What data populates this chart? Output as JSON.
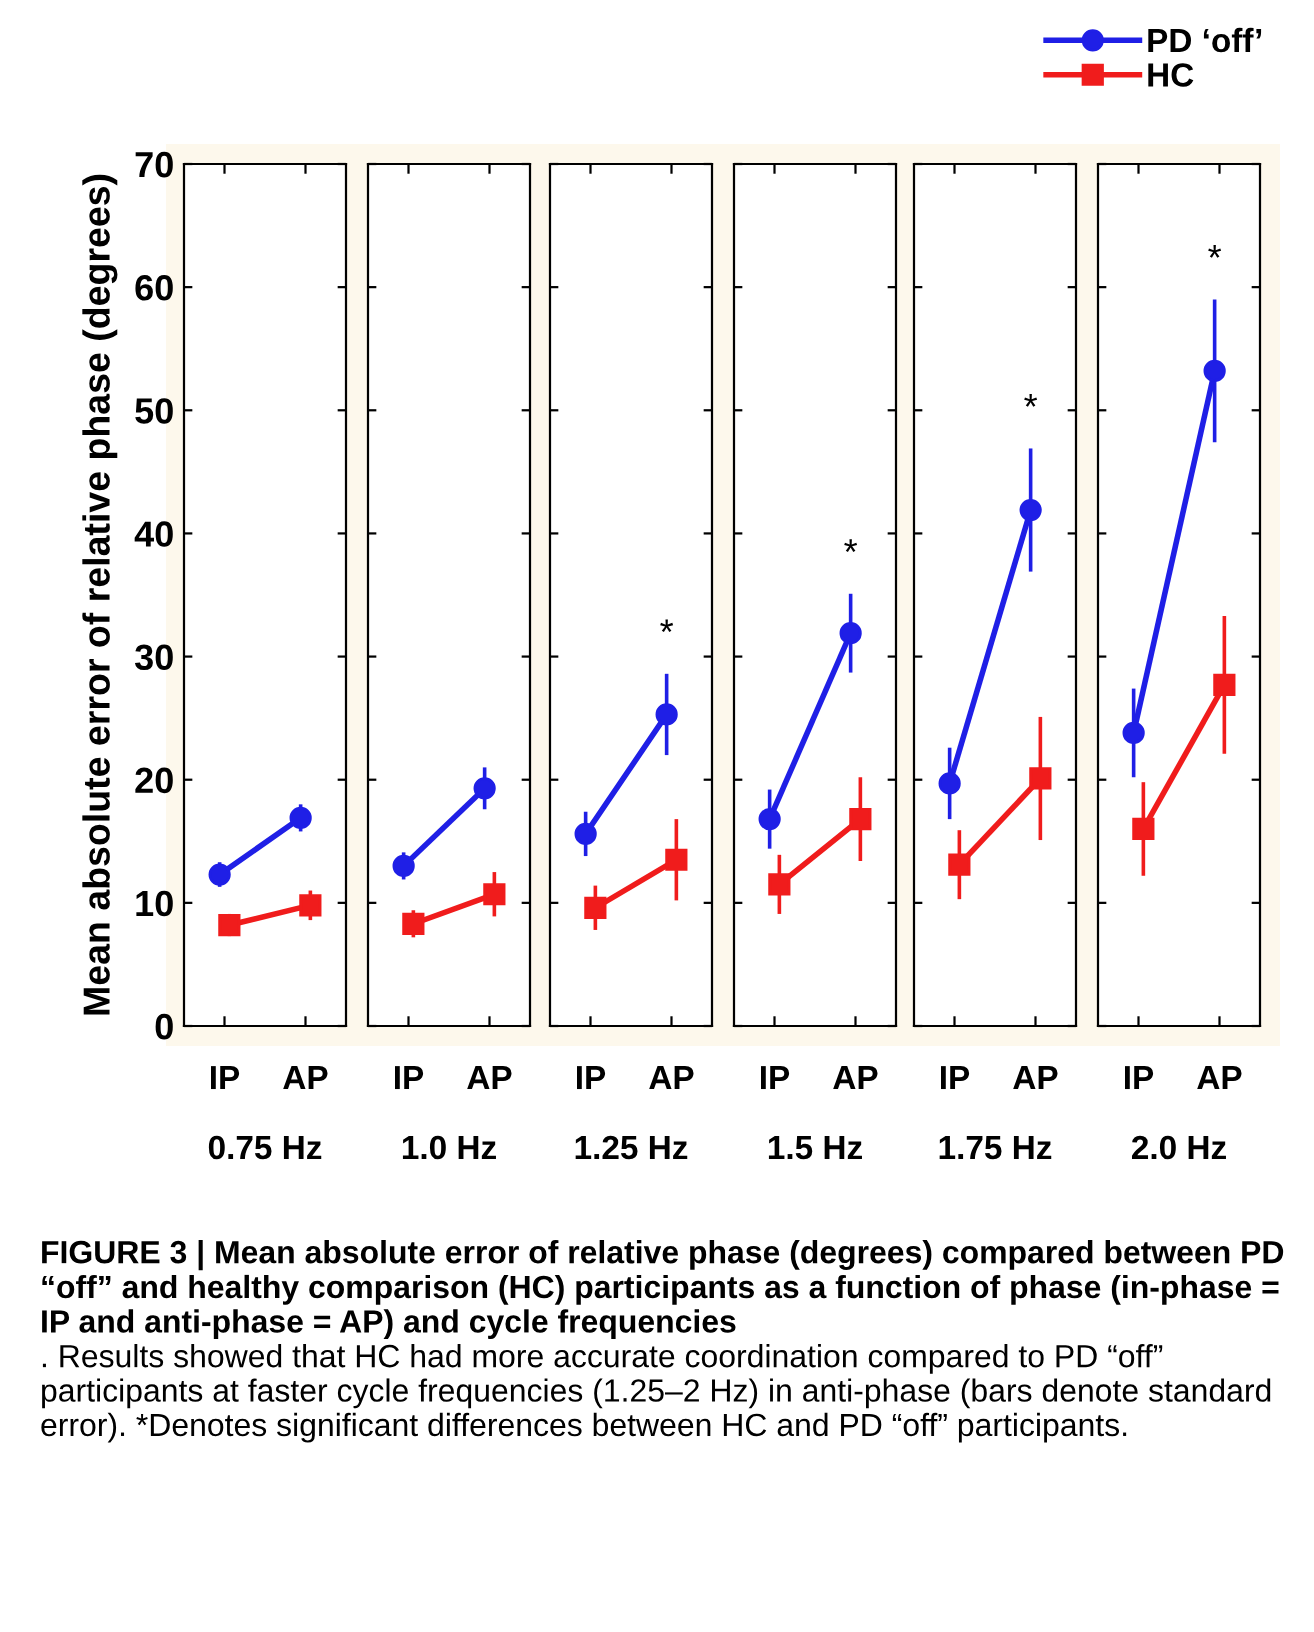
{
  "chart_data": [
    {
      "type": "line",
      "xlabel": "0.75 Hz",
      "ylabel": "Mean absolute error of relative phase (degrees)",
      "categories": [
        "IP",
        "AP"
      ],
      "ylim": [
        0,
        70
      ],
      "yticks": [
        0,
        10,
        20,
        30,
        40,
        50,
        60,
        70
      ],
      "tick_labels": "xy",
      "legend": "top right",
      "series": [
        {
          "name": "PD ‘off’",
          "color": "#1f1fe6",
          "marker": "circle",
          "values": [
            12.3,
            16.9
          ],
          "errors": [
            1.0,
            1.1
          ]
        },
        {
          "name": "HC",
          "color": "#f01c1c",
          "marker": "square",
          "values": [
            8.2,
            9.8
          ],
          "errors": [
            0.9,
            1.2
          ]
        }
      ],
      "annotations": [
        "FIGURE 3 | Mean absolute error of relative phase (degrees) compared between PD “off” and healthy comparison (HC) participants as a function of phase (in-phase = IP and anti-phase = AP) and cycle frequencies",
        ". Results showed that HC had more accurate coordination compared to PD “off” participants at faster cycle frequencies (1.25–2 Hz) in anti-phase (bars denote standard error). *Denotes significant differences between HC and PD “off” participants."
      ]
    },
    {
      "type": "line",
      "xlabel": "1.0 Hz",
      "categories": [
        "IP",
        "AP"
      ],
      "ylim": [
        0,
        70
      ],
      "yticks": [
        0,
        10,
        20,
        30,
        40,
        50,
        60,
        70
      ],
      "tick_labels": "x",
      "series": [
        {
          "color": "#1f1fe6",
          "marker": "circle",
          "values": [
            13.0,
            19.3
          ],
          "errors": [
            1.1,
            1.7
          ]
        },
        {
          "color": "#f01c1c",
          "marker": "square",
          "values": [
            8.3,
            10.7
          ],
          "errors": [
            1.1,
            1.8
          ]
        }
      ]
    },
    {
      "type": "line",
      "xlabel": "1.25 Hz",
      "categories": [
        "IP",
        "AP"
      ],
      "ylim": [
        0,
        70
      ],
      "yticks": [
        0,
        10,
        20,
        30,
        40,
        50,
        60,
        70
      ],
      "tick_labels": "x",
      "series": [
        {
          "color": "#1f1fe6",
          "marker": "circle",
          "values": [
            15.6,
            25.3
          ],
          "errors": [
            1.8,
            3.3
          ]
        },
        {
          "color": "#f01c1c",
          "marker": "square",
          "values": [
            9.6,
            13.5
          ],
          "errors": [
            1.8,
            3.3
          ]
        }
      ],
      "annotations": [
        "*"
      ]
    },
    {
      "type": "line",
      "xlabel": "1.5 Hz",
      "categories": [
        "IP",
        "AP"
      ],
      "ylim": [
        0,
        70
      ],
      "yticks": [
        0,
        10,
        20,
        30,
        40,
        50,
        60,
        70
      ],
      "tick_labels": "x",
      "series": [
        {
          "color": "#1f1fe6",
          "marker": "circle",
          "values": [
            16.8,
            31.9
          ],
          "errors": [
            2.4,
            3.2
          ]
        },
        {
          "color": "#f01c1c",
          "marker": "square",
          "values": [
            11.5,
            16.8
          ],
          "errors": [
            2.4,
            3.4
          ]
        }
      ],
      "annotations": [
        "*"
      ]
    },
    {
      "type": "line",
      "xlabel": "1.75 Hz",
      "categories": [
        "IP",
        "AP"
      ],
      "ylim": [
        0,
        70
      ],
      "yticks": [
        0,
        10,
        20,
        30,
        40,
        50,
        60,
        70
      ],
      "tick_labels": "x",
      "series": [
        {
          "color": "#1f1fe6",
          "marker": "circle",
          "values": [
            19.7,
            41.9
          ],
          "errors": [
            2.9,
            5.0
          ]
        },
        {
          "color": "#f01c1c",
          "marker": "square",
          "values": [
            13.1,
            20.1
          ],
          "errors": [
            2.8,
            5.0
          ]
        }
      ],
      "annotations": [
        "*"
      ]
    },
    {
      "type": "line",
      "xlabel": "2.0 Hz",
      "categories": [
        "IP",
        "AP"
      ],
      "ylim": [
        0,
        70
      ],
      "yticks": [
        0,
        10,
        20,
        30,
        40,
        50,
        60,
        70
      ],
      "tick_labels": "x",
      "series": [
        {
          "color": "#1f1fe6",
          "marker": "circle",
          "values": [
            23.8,
            53.2
          ],
          "errors": [
            3.6,
            5.8
          ]
        },
        {
          "color": "#f01c1c",
          "marker": "square",
          "values": [
            16.0,
            27.7
          ],
          "errors": [
            3.8,
            5.6
          ]
        }
      ],
      "annotations": [
        "*"
      ]
    }
  ]
}
